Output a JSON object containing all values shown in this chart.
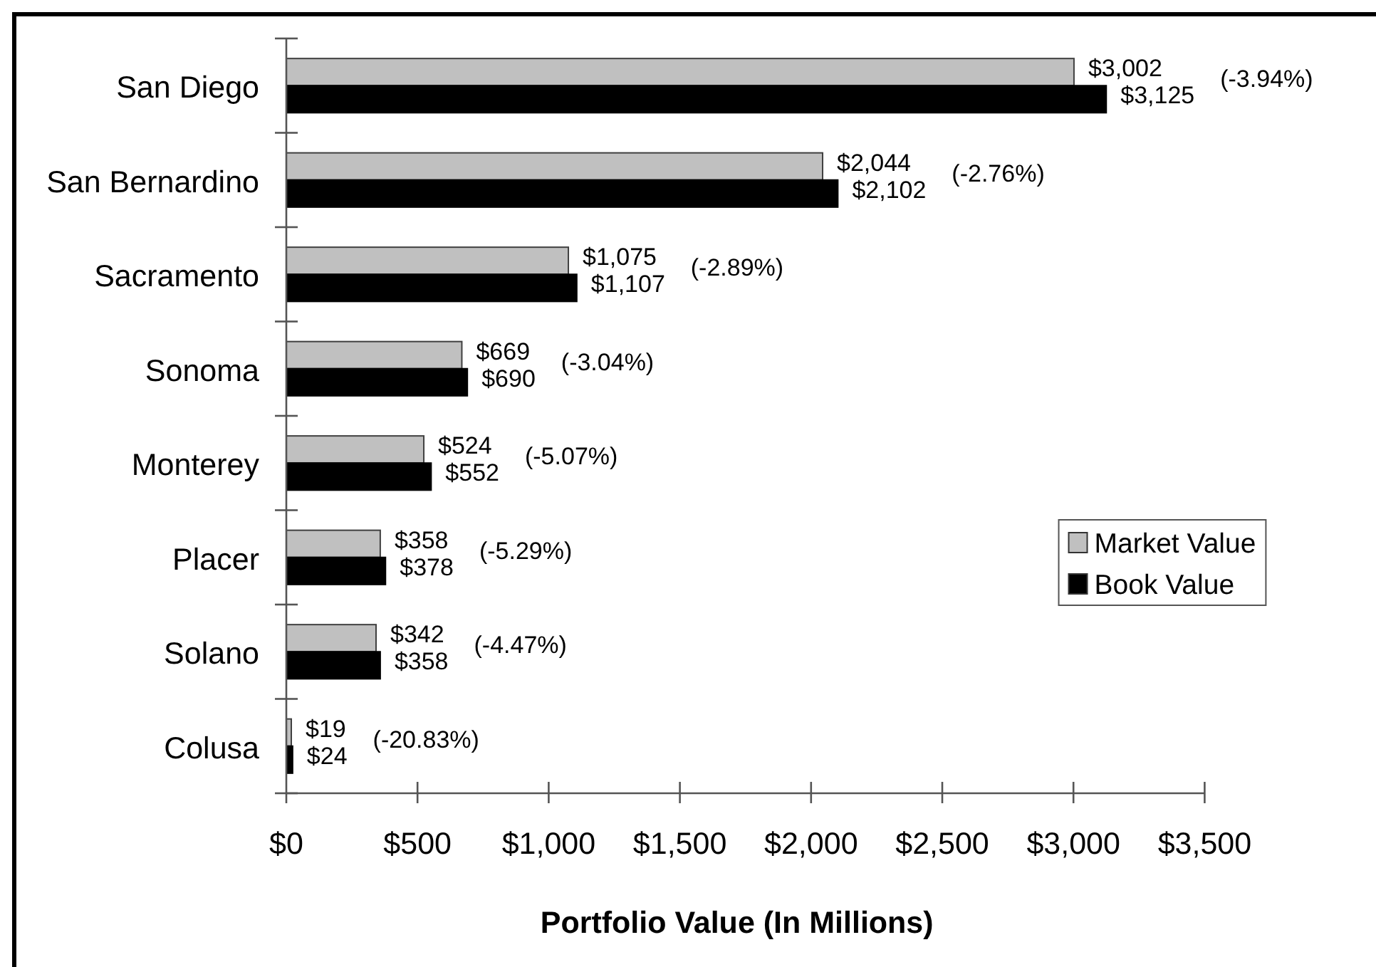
{
  "chart_data": {
    "type": "bar",
    "orientation": "horizontal",
    "categories": [
      "San Diego",
      "San Bernardino",
      "Sacramento",
      "Sonoma",
      "Monterey",
      "Placer",
      "Solano",
      "Colusa"
    ],
    "series": [
      {
        "name": "Market Value",
        "color": "#c0c0c0",
        "values": [
          3002,
          2044,
          1075,
          669,
          524,
          358,
          342,
          19
        ],
        "value_labels": [
          "$3,002",
          "$2,044",
          "$1,075",
          "$669",
          "$524",
          "$358",
          "$342",
          "$19"
        ]
      },
      {
        "name": "Book Value",
        "color": "#000000",
        "values": [
          3125,
          2102,
          1107,
          690,
          552,
          378,
          358,
          24
        ],
        "value_labels": [
          "$3,125",
          "$2,102",
          "$1,107",
          "$690",
          "$552",
          "$378",
          "$358",
          "$24"
        ]
      }
    ],
    "xlabel": "Portfolio Value (In Millions)",
    "xlim": [
      0,
      3500
    ],
    "xticks": [
      {
        "value": 0,
        "label": "$0"
      },
      {
        "value": 500,
        "label": "$500"
      },
      {
        "value": 1000,
        "label": "$1,000"
      },
      {
        "value": 1500,
        "label": "$1,500"
      },
      {
        "value": 2000,
        "label": "$2,000"
      },
      {
        "value": 2500,
        "label": "$2,500"
      },
      {
        "value": 3000,
        "label": "$3,000"
      },
      {
        "value": 3500,
        "label": "$3,500"
      }
    ],
    "legend": "right",
    "annotations": [
      "(-3.94%)",
      "(-2.76%)",
      "(-2.89%)",
      "(-3.04%)",
      "(-5.07%)",
      "(-5.29%)",
      "(-4.47%)",
      "(-20.83%)"
    ]
  }
}
